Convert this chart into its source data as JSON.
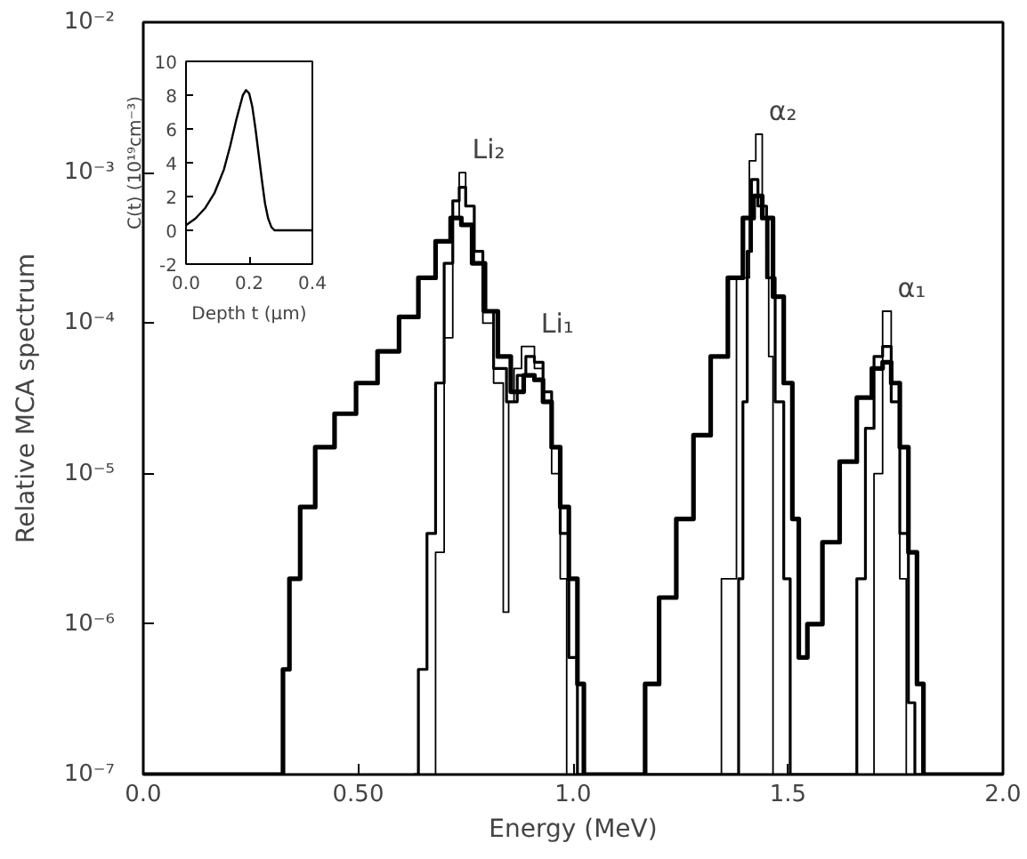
{
  "chart_data": [
    {
      "type": "step",
      "xlabel": "Energy (MeV)",
      "ylabel": "Relative MCA spectrum",
      "log": "y",
      "grid": false,
      "xlim": [
        0,
        2
      ],
      "ylim": [
        1e-07,
        0.01
      ],
      "xticks": [
        {
          "value": 0,
          "label": "0.0"
        },
        {
          "value": 0.5,
          "label": "0.50"
        },
        {
          "value": 1,
          "label": "1.0"
        },
        {
          "value": 1.5,
          "label": "1.5"
        },
        {
          "value": 2,
          "label": "2.0"
        }
      ],
      "yticks": [
        {
          "value": 1e-07,
          "label": "10⁻⁷"
        },
        {
          "value": 1e-06,
          "label": "10⁻⁶"
        },
        {
          "value": 1e-05,
          "label": "10⁻⁵"
        },
        {
          "value": 0.0001,
          "label": "10⁻⁴"
        },
        {
          "value": 0.001,
          "label": "10⁻³"
        },
        {
          "value": 0.01,
          "label": "10⁻²"
        }
      ],
      "series": [
        {
          "color": "#000000",
          "x": [
            0,
            0.32,
            0.33,
            0.35,
            0.38,
            0.42,
            0.47,
            0.52,
            0.57,
            0.62,
            0.66,
            0.7,
            0.73,
            0.75,
            0.78,
            0.81,
            0.84,
            0.87,
            0.9,
            0.92,
            0.94,
            0.96,
            0.98,
            1.0,
            1.02,
            1.03,
            1.155,
            1.18,
            1.22,
            1.26,
            1.3,
            1.34,
            1.38,
            1.41,
            1.43,
            1.45,
            1.48,
            1.5,
            1.52,
            1.53,
            1.56,
            1.6,
            1.64,
            1.68,
            1.71,
            1.73,
            1.75,
            1.77,
            1.79,
            1.81,
            1.82,
            2.0
          ],
          "values": [
            1e-07,
            1e-07,
            5e-07,
            2e-06,
            6e-06,
            1.5e-05,
            2.5e-05,
            4e-05,
            6.5e-05,
            0.00011,
            0.0002,
            0.00035,
            0.0005,
            0.00045,
            0.00025,
            0.00012,
            6e-05,
            3.5e-05,
            4.5e-05,
            4.2e-05,
            3e-05,
            1.5e-05,
            6e-06,
            2e-06,
            4e-07,
            1e-07,
            1e-07,
            4e-07,
            1.5e-06,
            5e-06,
            1.8e-05,
            6e-05,
            0.0002,
            0.0005,
            0.0007,
            0.0005,
            0.00015,
            4e-05,
            5e-06,
            6e-07,
            1e-06,
            3.5e-06,
            1.2e-05,
            3.2e-05,
            5e-05,
            5.5e-05,
            4e-05,
            1.5e-05,
            3e-06,
            4e-07,
            1e-07,
            1e-07
          ]
        },
        {
          "color": "#000000",
          "x": [
            0.63,
            0.65,
            0.67,
            0.69,
            0.71,
            0.73,
            0.74,
            0.76,
            0.78,
            0.8,
            0.83,
            0.86,
            0.88,
            0.9,
            0.92,
            0.94,
            0.96,
            0.98,
            1.0,
            1.02,
            1.38,
            1.39,
            1.4,
            1.41,
            1.42,
            1.44,
            1.46,
            1.48,
            1.5,
            1.51,
            1.65,
            1.67,
            1.69,
            1.71,
            1.73,
            1.75,
            1.77,
            1.79,
            1.8,
            1.81
          ],
          "values": [
            1e-07,
            5e-07,
            4e-06,
            4e-05,
            0.00025,
            0.00065,
            0.0008,
            0.0006,
            0.0003,
            0.00012,
            5e-05,
            3e-05,
            4.5e-05,
            6e-05,
            5.5e-05,
            3.5e-05,
            1.5e-05,
            4e-06,
            6e-07,
            1e-07,
            1e-07,
            2e-06,
            3e-05,
            0.0003,
            0.0009,
            0.0006,
            0.0002,
            3e-05,
            2e-06,
            1e-07,
            1e-07,
            2e-06,
            2e-05,
            6e-05,
            7e-05,
            3e-05,
            4e-06,
            3e-07,
            1e-07,
            1e-07
          ]
        },
        {
          "color": "#000000",
          "x": [
            0.67,
            0.69,
            0.71,
            0.73,
            0.74,
            0.76,
            0.78,
            0.8,
            0.83,
            0.845,
            0.855,
            0.87,
            0.89,
            0.9,
            0.92,
            0.94,
            0.96,
            0.98,
            0.99,
            1.33,
            1.36,
            1.4,
            1.42,
            1.43,
            1.45,
            1.46,
            1.47,
            1.69,
            1.71,
            1.73,
            1.75,
            1.77,
            1.78
          ],
          "values": [
            1e-07,
            3e-06,
            8e-05,
            0.0005,
            0.001,
            0.0006,
            0.00025,
            0.0001,
            4e-05,
            1.2e-06,
            3e-05,
            5e-05,
            7e-05,
            7e-05,
            5e-05,
            3e-05,
            1e-05,
            2e-06,
            1e-07,
            1e-07,
            2e-06,
            0.0002,
            0.0012,
            0.0018,
            0.0005,
            6e-05,
            1e-07,
            1e-07,
            1e-05,
            0.00012,
            4e-05,
            2e-06,
            1e-07
          ]
        }
      ],
      "annotations": [
        {
          "text": "Li₂",
          "x": 0.74,
          "y": 0.001
        },
        {
          "text": "Li₁",
          "x": 0.9,
          "y": 7e-05
        },
        {
          "text": "α₂",
          "x": 1.43,
          "y": 0.0018
        },
        {
          "text": "α₁",
          "x": 1.73,
          "y": 0.00012
        }
      ]
    },
    {
      "type": "line",
      "xlabel": "Depth t (μm)",
      "ylabel": "C(t) (10¹⁹cm⁻³)",
      "grid": false,
      "xlim": [
        0,
        0.4
      ],
      "ylim": [
        -2,
        10
      ],
      "xticks": [
        {
          "value": 0,
          "label": "0.0"
        },
        {
          "value": 0.2,
          "label": "0.2"
        },
        {
          "value": 0.4,
          "label": "0.4"
        }
      ],
      "yticks": [
        -2,
        0,
        2,
        4,
        6,
        8,
        10
      ],
      "series": [
        {
          "color": "#000000",
          "x": [
            0,
            0.03,
            0.06,
            0.09,
            0.12,
            0.14,
            0.16,
            0.18,
            0.19,
            0.2,
            0.21,
            0.22,
            0.23,
            0.24,
            0.25,
            0.26,
            0.27,
            0.28,
            0.3,
            0.35,
            0.4
          ],
          "values": [
            0.3,
            0.7,
            1.3,
            2.2,
            3.6,
            5.0,
            6.6,
            8.0,
            8.3,
            8.1,
            7.3,
            6.0,
            4.5,
            3.0,
            1.6,
            0.7,
            0.2,
            0,
            0,
            0,
            0
          ]
        }
      ]
    }
  ]
}
